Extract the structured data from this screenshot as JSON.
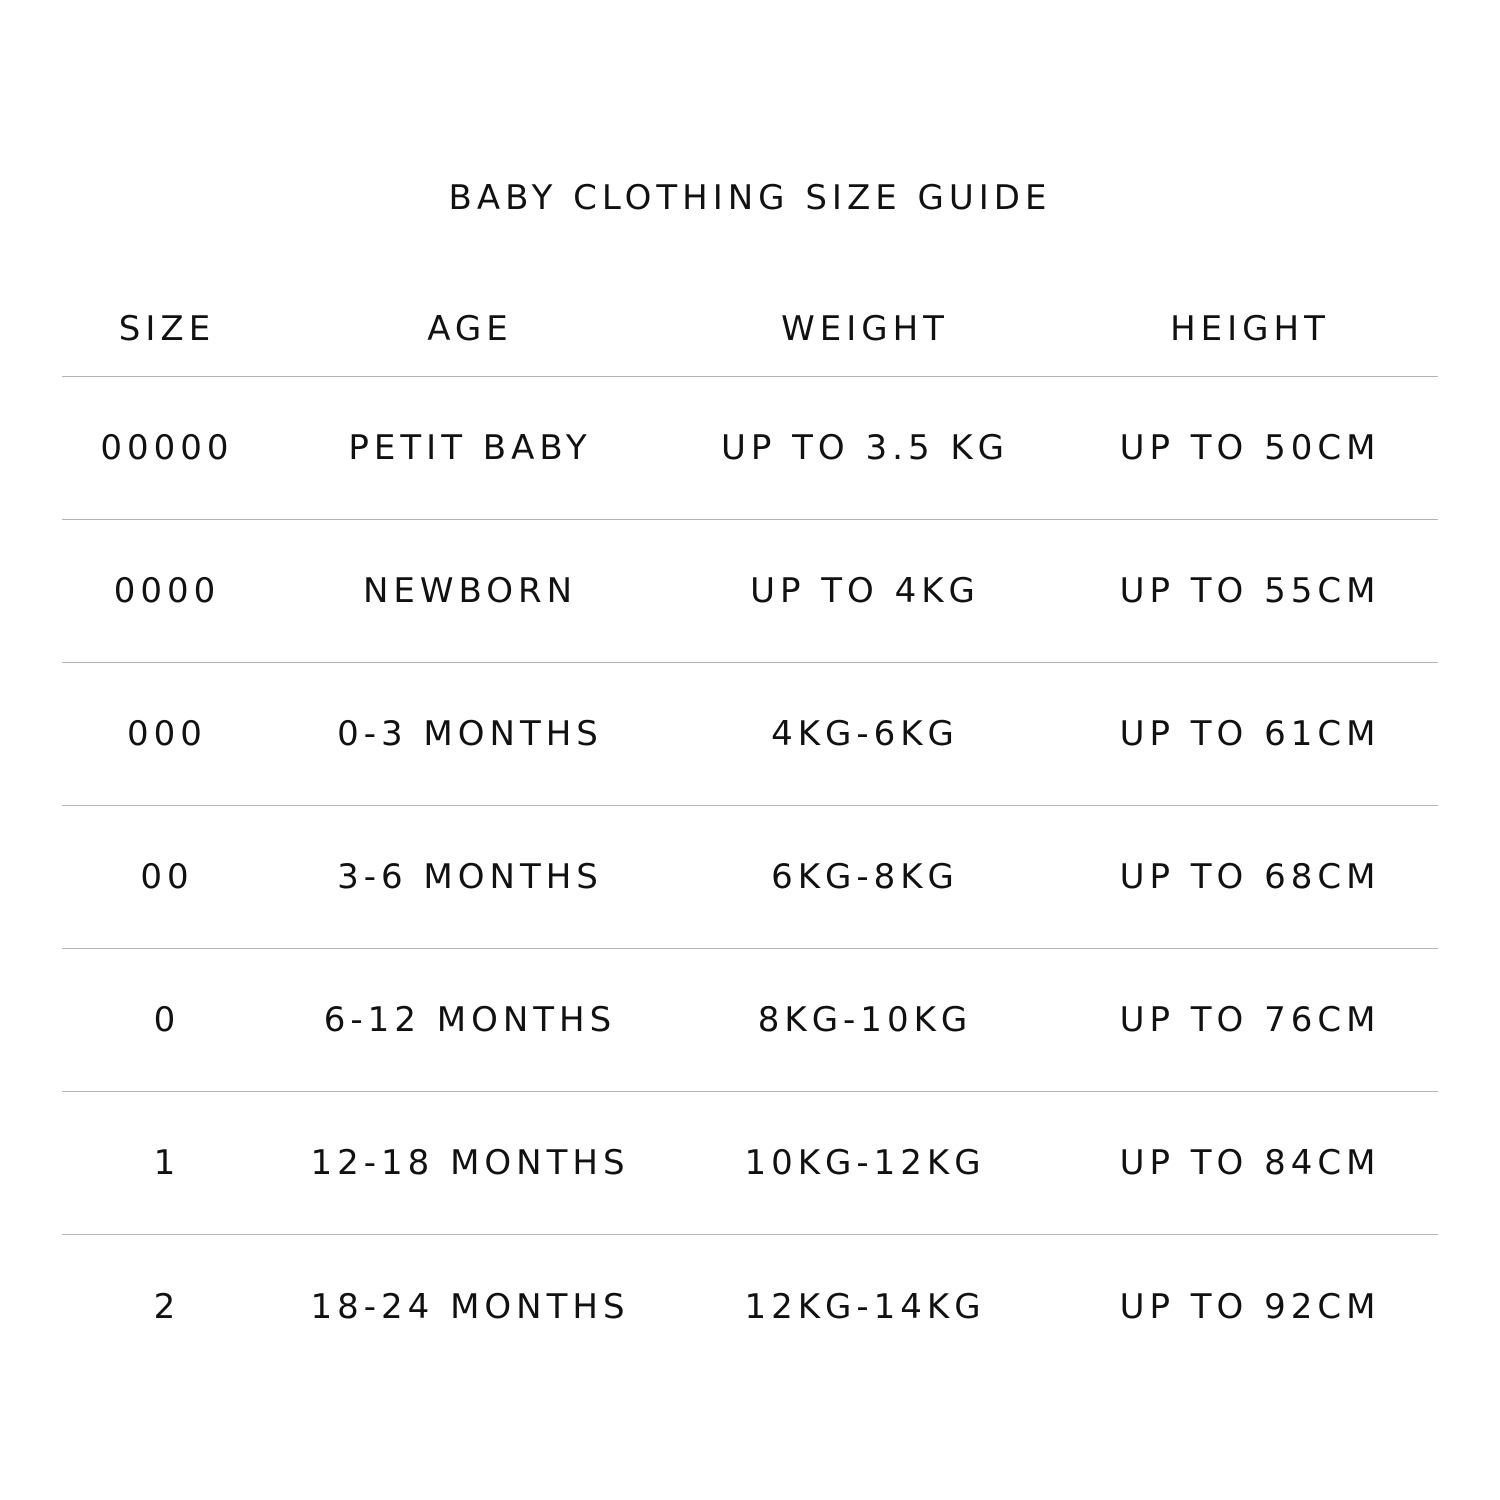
{
  "title": "BABY CLOTHING SIZE GUIDE",
  "headers": [
    "SIZE",
    "AGE",
    "WEIGHT",
    "HEIGHT"
  ],
  "rows": [
    [
      "00000",
      "PETIT BABY",
      "UP TO 3.5 KG",
      "UP TO 50CM"
    ],
    [
      "0000",
      "NEWBORN",
      "UP TO 4KG",
      "UP TO 55CM"
    ],
    [
      "000",
      "0-3 MONTHS",
      "4KG-6KG",
      "UP TO 61CM"
    ],
    [
      "00",
      "3-6 MONTHS",
      "6KG-8KG",
      "UP TO 68CM"
    ],
    [
      "0",
      "6-12 MONTHS",
      "8KG-10KG",
      "UP TO 76CM"
    ],
    [
      "1",
      "12-18 MONTHS",
      "10KG-12KG",
      "UP TO 84CM"
    ],
    [
      "2",
      "18-24 MONTHS",
      "12KG-14KG",
      "UP TO 92CM"
    ]
  ]
}
